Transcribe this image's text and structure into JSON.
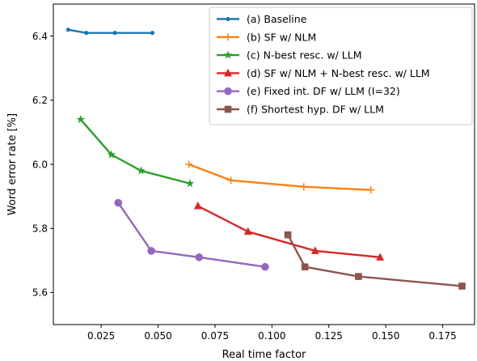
{
  "chart_data": {
    "type": "line",
    "xlabel": "Real time factor",
    "ylabel": "Word error rate [%]",
    "xlim": [
      0.004,
      0.189
    ],
    "ylim": [
      5.5,
      6.5
    ],
    "xticks": [
      0.025,
      0.05,
      0.075,
      0.1,
      0.125,
      0.15,
      0.175
    ],
    "xtick_labels": [
      "0.025",
      "0.050",
      "0.075",
      "0.100",
      "0.125",
      "0.150",
      "0.175"
    ],
    "yticks": [
      5.6,
      5.8,
      6.0,
      6.2,
      6.4
    ],
    "ytick_labels": [
      "5.6",
      "5.8",
      "6.0",
      "6.2",
      "6.4"
    ],
    "grid": false,
    "legend_position": "top-right",
    "series": [
      {
        "name": "(a) Baseline",
        "color": "#1f77b4",
        "marker": "dot",
        "points": [
          [
            0.0105,
            6.42
          ],
          [
            0.0185,
            6.41
          ],
          [
            0.031,
            6.41
          ],
          [
            0.0475,
            6.41
          ]
        ]
      },
      {
        "name": "(b) SF w/ NLM",
        "color": "#ff7f0e",
        "marker": "plus",
        "points": [
          [
            0.0635,
            6.0
          ],
          [
            0.082,
            5.95
          ],
          [
            0.114,
            5.93
          ],
          [
            0.1435,
            5.92
          ]
        ]
      },
      {
        "name": "(c) N-best resc. w/ LLM",
        "color": "#2ca02c",
        "marker": "star",
        "points": [
          [
            0.016,
            6.14
          ],
          [
            0.0295,
            6.03
          ],
          [
            0.0425,
            5.98
          ],
          [
            0.064,
            5.94
          ]
        ]
      },
      {
        "name": "(d) SF w/ NLM + N-best resc. w/ LLM",
        "color": "#d62728",
        "marker": "triangle",
        "points": [
          [
            0.0675,
            5.87
          ],
          [
            0.0895,
            5.79
          ],
          [
            0.119,
            5.73
          ],
          [
            0.1475,
            5.71
          ]
        ]
      },
      {
        "name": "(e) Fixed int. DF w/ LLM (I=32)",
        "color": "#9467bd",
        "marker": "circle",
        "points": [
          [
            0.0325,
            5.88
          ],
          [
            0.047,
            5.73
          ],
          [
            0.068,
            5.71
          ],
          [
            0.097,
            5.68
          ]
        ]
      },
      {
        "name": "(f) Shortest hyp. DF w/ LLM",
        "color": "#8c564b",
        "marker": "square",
        "points": [
          [
            0.107,
            5.78
          ],
          [
            0.1145,
            5.68
          ],
          [
            0.138,
            5.65
          ],
          [
            0.1835,
            5.62
          ]
        ]
      }
    ]
  }
}
